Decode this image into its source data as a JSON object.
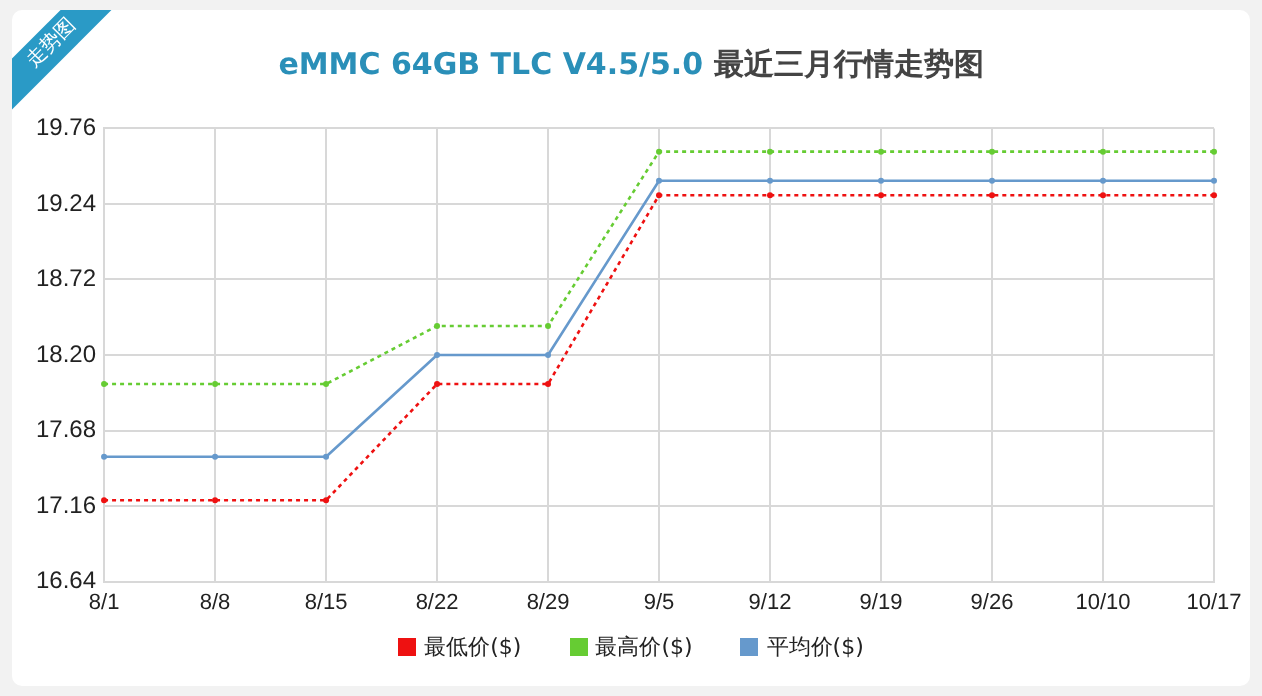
{
  "chart_data": {
    "type": "line",
    "title": "eMMC 64GB TLC V4.5/5.0 最近三月行情走势图",
    "annotations": [
      "走势图"
    ],
    "categories": [
      "8/1",
      "8/8",
      "8/15",
      "8/22",
      "8/29",
      "9/5",
      "9/12",
      "9/19",
      "9/26",
      "10/10",
      "10/17"
    ],
    "series": [
      {
        "name": "最低价($)",
        "color": "#ee1111",
        "line_style": "dotted",
        "values": [
          17.2,
          17.2,
          17.2,
          18.0,
          18.0,
          19.3,
          19.3,
          19.3,
          19.3,
          19.3,
          19.3
        ]
      },
      {
        "name": "最高价($)",
        "color": "#66cc33",
        "line_style": "dotted",
        "values": [
          18.0,
          18.0,
          18.0,
          18.4,
          18.4,
          19.6,
          19.6,
          19.6,
          19.6,
          19.6,
          19.6
        ]
      },
      {
        "name": "平均价($)",
        "color": "#6699cc",
        "line_style": "solid",
        "values": [
          17.5,
          17.5,
          17.5,
          18.2,
          18.2,
          19.4,
          19.4,
          19.4,
          19.4,
          19.4,
          19.4
        ]
      }
    ],
    "ylim": [
      16.64,
      19.76
    ],
    "yticks": [
      {
        "value": 16.64,
        "label": "16.64"
      },
      {
        "value": 17.16,
        "label": "17.16"
      },
      {
        "value": 17.68,
        "label": "17.68"
      },
      {
        "value": 18.2,
        "label": "18.20"
      },
      {
        "value": 18.72,
        "label": "18.72"
      },
      {
        "value": 19.24,
        "label": "19.24"
      },
      {
        "value": 19.76,
        "label": "19.76"
      }
    ],
    "grid": true,
    "legend": "bottom",
    "marker": "circle"
  }
}
